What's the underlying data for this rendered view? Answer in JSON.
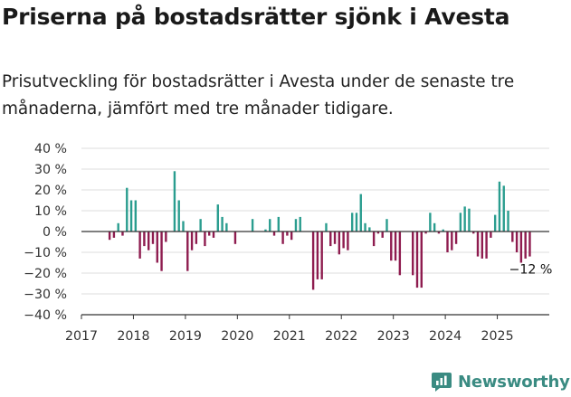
{
  "title": "Priserna på bostadsrätter sjönk i Avesta",
  "subtitle": "Prisutveckling för bostadsrätter i Avesta under de senaste tre månaderna, jämfört med tre månader tidigare.",
  "brand": {
    "name": "Newsworthy",
    "icon": "newsworthy-logo-icon",
    "color": "#3a8b82"
  },
  "colors": {
    "positive": "#2a9d8f",
    "negative": "#8e1c4f",
    "axis": "#333333",
    "grid": "#dddddd"
  },
  "chart_data": {
    "type": "bar",
    "x_axis": {
      "ticks": [
        "2017",
        "2018",
        "2019",
        "2020",
        "2021",
        "2022",
        "2023",
        "2024",
        "2025"
      ],
      "range": [
        "2017-01",
        "2025-12"
      ]
    },
    "y_axis": {
      "ticks": [
        40,
        30,
        20,
        10,
        0,
        -10,
        -20,
        -30,
        -40
      ],
      "tick_labels": [
        "40 %",
        "30 %",
        "20 %",
        "10 %",
        "0 %",
        "−10 %",
        "−20 %",
        "−30 %",
        "−40 %"
      ],
      "ylim": [
        -40,
        40
      ],
      "unit": "%"
    },
    "grid": true,
    "values": [
      {
        "date": "2017-07",
        "value": -4
      },
      {
        "date": "2017-08",
        "value": -3
      },
      {
        "date": "2017-09",
        "value": 4
      },
      {
        "date": "2017-10",
        "value": -2
      },
      {
        "date": "2017-11",
        "value": 21
      },
      {
        "date": "2017-12",
        "value": 15
      },
      {
        "date": "2018-01",
        "value": 15
      },
      {
        "date": "2018-02",
        "value": -13
      },
      {
        "date": "2018-03",
        "value": -7
      },
      {
        "date": "2018-04",
        "value": -9
      },
      {
        "date": "2018-05",
        "value": -6
      },
      {
        "date": "2018-06",
        "value": -15
      },
      {
        "date": "2018-07",
        "value": -19
      },
      {
        "date": "2018-08",
        "value": -5
      },
      {
        "date": "2018-10",
        "value": 29
      },
      {
        "date": "2018-11",
        "value": 15
      },
      {
        "date": "2018-12",
        "value": 5
      },
      {
        "date": "2019-01",
        "value": -19
      },
      {
        "date": "2019-02",
        "value": -9
      },
      {
        "date": "2019-03",
        "value": -6
      },
      {
        "date": "2019-04",
        "value": 6
      },
      {
        "date": "2019-05",
        "value": -7
      },
      {
        "date": "2019-06",
        "value": -2
      },
      {
        "date": "2019-07",
        "value": -3
      },
      {
        "date": "2019-08",
        "value": 13
      },
      {
        "date": "2019-09",
        "value": 7
      },
      {
        "date": "2019-10",
        "value": 4
      },
      {
        "date": "2019-12",
        "value": -6
      },
      {
        "date": "2020-04",
        "value": 6
      },
      {
        "date": "2020-07",
        "value": 1
      },
      {
        "date": "2020-08",
        "value": 6
      },
      {
        "date": "2020-09",
        "value": -2
      },
      {
        "date": "2020-10",
        "value": 7
      },
      {
        "date": "2020-11",
        "value": -6
      },
      {
        "date": "2020-12",
        "value": -2
      },
      {
        "date": "2021-01",
        "value": -4
      },
      {
        "date": "2021-02",
        "value": 6
      },
      {
        "date": "2021-03",
        "value": 7
      },
      {
        "date": "2021-06",
        "value": -28
      },
      {
        "date": "2021-07",
        "value": -23
      },
      {
        "date": "2021-08",
        "value": -23
      },
      {
        "date": "2021-09",
        "value": 4
      },
      {
        "date": "2021-10",
        "value": -7
      },
      {
        "date": "2021-11",
        "value": -6
      },
      {
        "date": "2021-12",
        "value": -11
      },
      {
        "date": "2022-01",
        "value": -8
      },
      {
        "date": "2022-02",
        "value": -9
      },
      {
        "date": "2022-03",
        "value": 9
      },
      {
        "date": "2022-04",
        "value": 9
      },
      {
        "date": "2022-05",
        "value": 18
      },
      {
        "date": "2022-06",
        "value": 4
      },
      {
        "date": "2022-07",
        "value": 2
      },
      {
        "date": "2022-08",
        "value": -7
      },
      {
        "date": "2022-09",
        "value": -1
      },
      {
        "date": "2022-10",
        "value": -3
      },
      {
        "date": "2022-11",
        "value": 6
      },
      {
        "date": "2022-12",
        "value": -14
      },
      {
        "date": "2023-01",
        "value": -14
      },
      {
        "date": "2023-02",
        "value": -21
      },
      {
        "date": "2023-05",
        "value": -21
      },
      {
        "date": "2023-06",
        "value": -27
      },
      {
        "date": "2023-07",
        "value": -27
      },
      {
        "date": "2023-08",
        "value": -1
      },
      {
        "date": "2023-09",
        "value": 9
      },
      {
        "date": "2023-10",
        "value": 4
      },
      {
        "date": "2023-11",
        "value": -1
      },
      {
        "date": "2023-12",
        "value": 1
      },
      {
        "date": "2024-01",
        "value": -10
      },
      {
        "date": "2024-02",
        "value": -9
      },
      {
        "date": "2024-03",
        "value": -6
      },
      {
        "date": "2024-04",
        "value": 9
      },
      {
        "date": "2024-05",
        "value": 12
      },
      {
        "date": "2024-06",
        "value": 11
      },
      {
        "date": "2024-07",
        "value": -1
      },
      {
        "date": "2024-08",
        "value": -12
      },
      {
        "date": "2024-09",
        "value": -13
      },
      {
        "date": "2024-10",
        "value": -13
      },
      {
        "date": "2024-11",
        "value": -3
      },
      {
        "date": "2024-12",
        "value": 8
      },
      {
        "date": "2025-01",
        "value": 24
      },
      {
        "date": "2025-02",
        "value": 22
      },
      {
        "date": "2025-03",
        "value": 10
      },
      {
        "date": "2025-04",
        "value": -5
      },
      {
        "date": "2025-05",
        "value": -10
      },
      {
        "date": "2025-06",
        "value": -15
      },
      {
        "date": "2025-07",
        "value": -13
      },
      {
        "date": "2025-08",
        "value": -12
      }
    ],
    "annotation": {
      "text": "−12 %",
      "date": "2025-08",
      "value": -12
    }
  }
}
